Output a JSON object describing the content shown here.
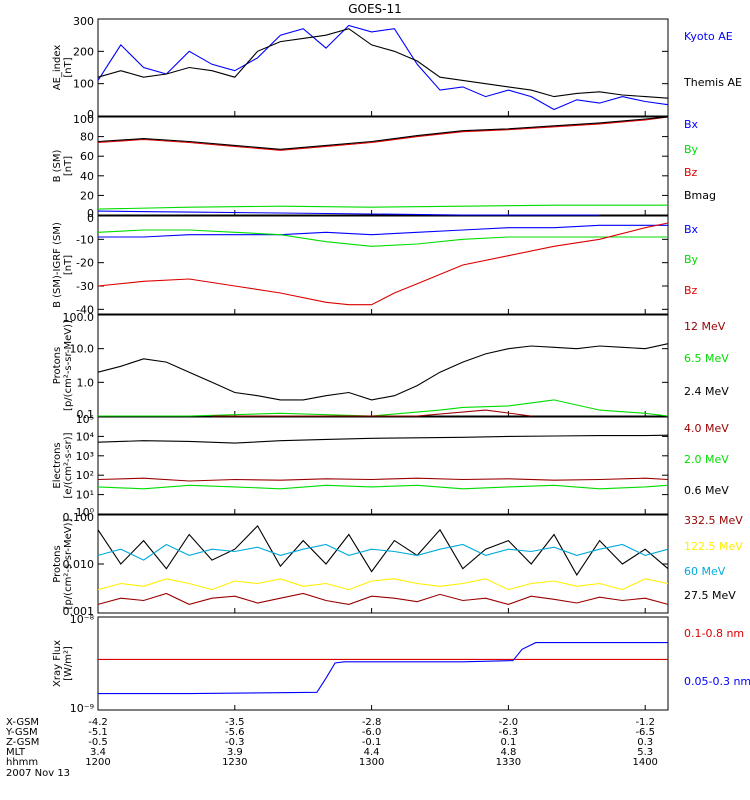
{
  "figure_title": "GOES-11",
  "colors": {
    "black": "#000000",
    "blue": "#0000ff",
    "green": "#00dd00",
    "red": "#dd0000",
    "darkred": "#990000",
    "cyan": "#00aadd",
    "yellow": "#ffee00"
  },
  "chart_data": [
    {
      "type": "line",
      "ylabel": "AE_index\n[nT]",
      "yticks": [
        "300",
        "200",
        "100",
        "0"
      ],
      "ytick_values": [
        300,
        200,
        100,
        0
      ],
      "ylim": [
        0,
        300
      ],
      "legend": [
        {
          "label": "Kyoto AE",
          "color": "blue"
        },
        {
          "label": "Themis AE",
          "color": "black"
        }
      ],
      "series": [
        {
          "name": "Kyoto AE",
          "color": "blue",
          "x": [
            0,
            5,
            10,
            15,
            20,
            25,
            30,
            35,
            40,
            45,
            50,
            55,
            60,
            65,
            70,
            75,
            80,
            85,
            90,
            95,
            100,
            105,
            110,
            115,
            120,
            125
          ],
          "values": [
            110,
            220,
            150,
            130,
            200,
            160,
            140,
            180,
            250,
            270,
            210,
            280,
            260,
            270,
            160,
            80,
            90,
            60,
            80,
            60,
            20,
            50,
            40,
            60,
            45,
            35
          ]
        },
        {
          "name": "Themis AE",
          "color": "black",
          "x": [
            0,
            5,
            10,
            15,
            20,
            25,
            30,
            35,
            40,
            45,
            50,
            55,
            60,
            65,
            70,
            75,
            80,
            85,
            90,
            95,
            100,
            105,
            110,
            115,
            120,
            125
          ],
          "values": [
            120,
            140,
            120,
            130,
            150,
            140,
            120,
            200,
            230,
            240,
            250,
            270,
            220,
            200,
            170,
            120,
            110,
            100,
            90,
            80,
            60,
            70,
            75,
            65,
            60,
            55
          ]
        }
      ]
    },
    {
      "type": "line",
      "ylabel": "B (SM)\n[nT]",
      "yticks": [
        "100",
        "80",
        "60",
        "40",
        "20",
        "0"
      ],
      "ytick_values": [
        100,
        80,
        60,
        40,
        20,
        0
      ],
      "ylim": [
        0,
        100
      ],
      "legend": [
        {
          "label": "Bx",
          "color": "blue"
        },
        {
          "label": "By",
          "color": "green"
        },
        {
          "label": "Bz",
          "color": "red"
        },
        {
          "label": "Bmag",
          "color": "black"
        }
      ],
      "series": [
        {
          "name": "Bx",
          "color": "blue",
          "x": [
            0,
            20,
            40,
            60,
            80,
            100,
            110
          ],
          "values": [
            4,
            3,
            2,
            1,
            0,
            -1,
            -1
          ]
        },
        {
          "name": "By",
          "color": "green",
          "x": [
            0,
            20,
            40,
            60,
            80,
            100,
            125
          ],
          "values": [
            6,
            8,
            9,
            8,
            9,
            10,
            10
          ]
        },
        {
          "name": "Bz",
          "color": "red",
          "x": [
            0,
            10,
            20,
            30,
            40,
            50,
            60,
            70,
            80,
            90,
            100,
            110,
            120,
            125
          ],
          "values": [
            74,
            77,
            74,
            70,
            66,
            70,
            74,
            80,
            85,
            87,
            90,
            93,
            97,
            100
          ]
        },
        {
          "name": "Bmag",
          "color": "black",
          "x": [
            0,
            10,
            20,
            30,
            40,
            50,
            60,
            70,
            80,
            90,
            100,
            110,
            120,
            125
          ],
          "values": [
            75,
            78,
            75,
            71,
            67,
            71,
            75,
            81,
            86,
            88,
            91,
            94,
            98,
            101
          ]
        }
      ]
    },
    {
      "type": "line",
      "ylabel": "B (SM)-IGRF (SM)\n[nT]",
      "yticks": [
        "0",
        "-10",
        "-20",
        "-30",
        "-40"
      ],
      "ytick_values": [
        0,
        -10,
        -20,
        -30,
        -40
      ],
      "ylim": [
        -42,
        0
      ],
      "legend": [
        {
          "label": "Bx",
          "color": "blue"
        },
        {
          "label": "By",
          "color": "green"
        },
        {
          "label": "Bz",
          "color": "red"
        }
      ],
      "series": [
        {
          "name": "Bx",
          "color": "blue",
          "x": [
            0,
            10,
            20,
            30,
            40,
            50,
            60,
            70,
            80,
            90,
            100,
            110,
            120,
            125
          ],
          "values": [
            -9,
            -9,
            -8,
            -8,
            -8,
            -7,
            -8,
            -7,
            -6,
            -5,
            -5,
            -4,
            -4,
            -4
          ]
        },
        {
          "name": "By",
          "color": "green",
          "x": [
            0,
            10,
            20,
            30,
            40,
            50,
            60,
            70,
            80,
            90,
            100,
            110,
            120,
            125
          ],
          "values": [
            -7,
            -6,
            -6,
            -7,
            -8,
            -11,
            -13,
            -12,
            -10,
            -9,
            -9,
            -9,
            -9,
            -9
          ]
        },
        {
          "name": "Bz",
          "color": "red",
          "x": [
            0,
            10,
            20,
            30,
            40,
            50,
            55,
            60,
            65,
            70,
            80,
            90,
            100,
            110,
            120,
            125
          ],
          "values": [
            -30,
            -28,
            -27,
            -30,
            -33,
            -37,
            -38,
            -38,
            -33,
            -29,
            -21,
            -17,
            -13,
            -10,
            -5,
            -3
          ]
        }
      ]
    },
    {
      "type": "line",
      "log": true,
      "ylabel": "Protons\n[p/(cm²-s-sr-MeV)]",
      "yticks": [
        "100.0",
        "10.0",
        "1.0",
        "0.1"
      ],
      "ytick_values": [
        100,
        10,
        1,
        0.1
      ],
      "ylim": [
        0.1,
        100
      ],
      "legend": [
        {
          "label": "12 MeV",
          "color": "darkred"
        },
        {
          "label": "6.5 MeV",
          "color": "green"
        },
        {
          "label": "2.4 MeV",
          "color": "black"
        }
      ],
      "series": [
        {
          "name": "2.4 MeV",
          "color": "black",
          "x": [
            0,
            5,
            10,
            15,
            20,
            25,
            30,
            35,
            40,
            45,
            50,
            55,
            60,
            65,
            70,
            75,
            80,
            85,
            90,
            95,
            100,
            105,
            110,
            115,
            120,
            125
          ],
          "values": [
            2,
            3,
            5,
            4,
            2,
            1,
            0.5,
            0.4,
            0.3,
            0.3,
            0.4,
            0.5,
            0.3,
            0.4,
            0.8,
            2,
            4,
            7,
            10,
            12,
            11,
            10,
            12,
            11,
            10,
            14
          ]
        },
        {
          "name": "6.5 MeV",
          "color": "green",
          "x": [
            0,
            20,
            40,
            60,
            75,
            80,
            90,
            100,
            110,
            120,
            125
          ],
          "values": [
            0.1,
            0.1,
            0.12,
            0.1,
            0.15,
            0.18,
            0.2,
            0.3,
            0.15,
            0.12,
            0.1
          ]
        },
        {
          "name": "12 MeV",
          "color": "darkred",
          "x": [
            25,
            70,
            85,
            95
          ],
          "values": [
            0.1,
            0.1,
            0.15,
            0.1
          ]
        }
      ]
    },
    {
      "type": "line",
      "log": true,
      "ylabel": "Electrons\n[e/(cm²-s-sr)]",
      "yticks": [
        "10⁵",
        "10⁴",
        "10³",
        "10²",
        "10¹",
        "10⁰"
      ],
      "ytick_values": [
        100000,
        10000,
        1000,
        100,
        10,
        1
      ],
      "ylim": [
        1,
        100000
      ],
      "legend": [
        {
          "label": "4.0 MeV",
          "color": "darkred"
        },
        {
          "label": "2.0 MeV",
          "color": "green"
        },
        {
          "label": "0.6 MeV",
          "color": "black"
        }
      ],
      "series": [
        {
          "name": "0.6 MeV",
          "color": "black",
          "x": [
            0,
            10,
            20,
            30,
            40,
            50,
            60,
            70,
            80,
            90,
            100,
            110,
            120,
            125
          ],
          "values": [
            5000,
            6000,
            5500,
            4500,
            6000,
            7000,
            8000,
            8500,
            9000,
            10000,
            10500,
            11000,
            11000,
            11500
          ]
        },
        {
          "name": "4.0 MeV",
          "color": "darkred",
          "x": [
            0,
            10,
            20,
            30,
            40,
            50,
            60,
            70,
            80,
            90,
            100,
            110,
            120,
            125
          ],
          "values": [
            60,
            70,
            50,
            60,
            55,
            65,
            60,
            70,
            60,
            65,
            55,
            60,
            70,
            60
          ]
        },
        {
          "name": "2.0 MeV",
          "color": "green",
          "x": [
            0,
            10,
            20,
            30,
            40,
            50,
            60,
            70,
            80,
            90,
            100,
            110,
            120,
            125
          ],
          "values": [
            25,
            20,
            30,
            25,
            20,
            30,
            25,
            30,
            20,
            25,
            30,
            20,
            25,
            30
          ]
        }
      ]
    },
    {
      "type": "line",
      "log": true,
      "ylabel": "Protons\n[p/(cm²-s-sr-MeV)]",
      "yticks": [
        "0.100",
        "0.010",
        "0.001"
      ],
      "ytick_values": [
        0.1,
        0.01,
        0.001
      ],
      "ylim": [
        0.001,
        0.1
      ],
      "legend": [
        {
          "label": "332.5 MeV",
          "color": "darkred"
        },
        {
          "label": "122.5 MeV",
          "color": "yellow"
        },
        {
          "label": "60 MeV",
          "color": "cyan"
        },
        {
          "label": "27.5 MeV",
          "color": "black"
        }
      ],
      "series": [
        {
          "name": "27.5 MeV",
          "color": "black",
          "x": [
            0,
            5,
            10,
            15,
            20,
            25,
            30,
            35,
            40,
            45,
            50,
            55,
            60,
            65,
            70,
            75,
            80,
            85,
            90,
            95,
            100,
            105,
            110,
            115,
            120,
            125
          ],
          "values": [
            0.05,
            0.01,
            0.03,
            0.008,
            0.04,
            0.012,
            0.02,
            0.06,
            0.009,
            0.03,
            0.01,
            0.04,
            0.007,
            0.03,
            0.015,
            0.05,
            0.008,
            0.02,
            0.03,
            0.01,
            0.04,
            0.006,
            0.03,
            0.01,
            0.02,
            0.008
          ]
        },
        {
          "name": "60 MeV",
          "color": "cyan",
          "x": [
            0,
            5,
            10,
            15,
            20,
            25,
            30,
            35,
            40,
            45,
            50,
            55,
            60,
            65,
            70,
            75,
            80,
            85,
            90,
            95,
            100,
            105,
            110,
            115,
            120,
            125
          ],
          "values": [
            0.015,
            0.02,
            0.012,
            0.025,
            0.015,
            0.02,
            0.018,
            0.022,
            0.015,
            0.02,
            0.025,
            0.015,
            0.02,
            0.018,
            0.015,
            0.02,
            0.025,
            0.015,
            0.02,
            0.018,
            0.022,
            0.015,
            0.02,
            0.025,
            0.015,
            0.02
          ]
        },
        {
          "name": "122.5 MeV",
          "color": "yellow",
          "x": [
            0,
            5,
            10,
            15,
            20,
            25,
            30,
            35,
            40,
            45,
            50,
            55,
            60,
            65,
            70,
            75,
            80,
            85,
            90,
            95,
            100,
            105,
            110,
            115,
            120,
            125
          ],
          "values": [
            0.003,
            0.004,
            0.0035,
            0.005,
            0.004,
            0.003,
            0.0045,
            0.004,
            0.005,
            0.0035,
            0.004,
            0.003,
            0.0045,
            0.005,
            0.004,
            0.0035,
            0.004,
            0.005,
            0.003,
            0.004,
            0.0045,
            0.0035,
            0.004,
            0.003,
            0.005,
            0.004
          ]
        },
        {
          "name": "332.5 MeV",
          "color": "darkred",
          "x": [
            0,
            5,
            10,
            15,
            20,
            25,
            30,
            35,
            40,
            45,
            50,
            55,
            60,
            65,
            70,
            75,
            80,
            85,
            90,
            95,
            100,
            105,
            110,
            115,
            120,
            125
          ],
          "values": [
            0.0015,
            0.002,
            0.0018,
            0.0025,
            0.0015,
            0.002,
            0.0022,
            0.0016,
            0.002,
            0.0025,
            0.0018,
            0.0015,
            0.0022,
            0.002,
            0.0017,
            0.0024,
            0.0018,
            0.002,
            0.0015,
            0.0022,
            0.0019,
            0.0016,
            0.0021,
            0.0018,
            0.002,
            0.0015
          ]
        }
      ]
    },
    {
      "type": "line",
      "log": true,
      "ylabel": "Xray Flux\n[W/m²]",
      "yticks": [
        "10⁻⁸",
        "10⁻⁹"
      ],
      "ytick_values": [
        1e-08,
        1e-09
      ],
      "ylim": [
        1e-09,
        1e-08
      ],
      "legend": [
        {
          "label": "0.1-0.8 nm",
          "color": "red"
        },
        {
          "label": "0.05-0.3 nm",
          "color": "blue"
        }
      ],
      "series": [
        {
          "name": "0.1-0.8 nm",
          "color": "red",
          "x": [
            0,
            125
          ],
          "values": [
            3.5e-09,
            3.5e-09
          ]
        },
        {
          "name": "0.05-0.3 nm",
          "color": "blue",
          "x": [
            0,
            20,
            48,
            50,
            52,
            54,
            80,
            91,
            93,
            96,
            125
          ],
          "values": [
            1.5e-09,
            1.5e-09,
            1.55e-09,
            2.2e-09,
            3.2e-09,
            3.3e-09,
            3.3e-09,
            3.4e-09,
            4.5e-09,
            5.3e-09,
            5.3e-09
          ]
        }
      ]
    }
  ],
  "x_axis": {
    "row_labels": [
      "X-GSM",
      "Y-GSM",
      "Z-GSM",
      "MLT",
      "hhmm"
    ],
    "date": "2007 Nov 13",
    "ticks": [
      {
        "x": 0,
        "values": [
          "-4.2",
          "-5.1",
          "-0.5",
          "3.4",
          "1200"
        ]
      },
      {
        "x": 30,
        "values": [
          "-3.5",
          "-5.6",
          "-0.3",
          "3.9",
          "1230"
        ]
      },
      {
        "x": 60,
        "values": [
          "-2.8",
          "-6.0",
          "-0.1",
          "4.4",
          "1300"
        ]
      },
      {
        "x": 90,
        "values": [
          "-2.0",
          "-6.3",
          "0.1",
          "4.8",
          "1330"
        ]
      },
      {
        "x": 120,
        "values": [
          "-1.2",
          "-6.5",
          "0.3",
          "5.3",
          "1400"
        ]
      }
    ]
  }
}
